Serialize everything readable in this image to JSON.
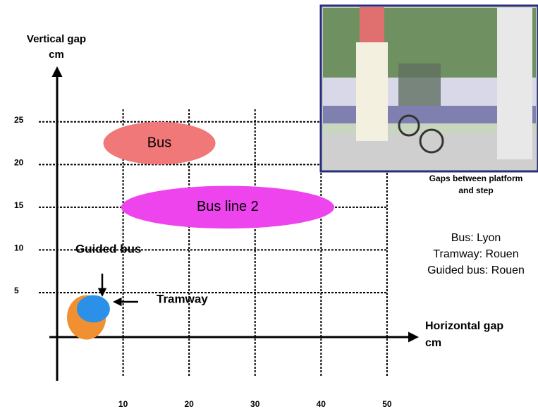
{
  "chart_data": {
    "type": "range",
    "ylabel": [
      "Vertical gap",
      "cm"
    ],
    "xlabel": [
      "Horizontal gap",
      "cm"
    ],
    "xlim": [
      0,
      54.5
    ],
    "ylim": [
      -4.5,
      32
    ],
    "xticks": [
      10,
      20,
      30,
      40,
      50
    ],
    "yticks": [
      5,
      10,
      15,
      20,
      25
    ],
    "grid": true,
    "series": [
      {
        "name": "Bus",
        "color": "#f07878",
        "x": [
          7,
          24
        ],
        "values": [
          20,
          25
        ]
      },
      {
        "name": "Bus line 2",
        "color": "#ee44ee",
        "x": [
          9.7,
          42
        ],
        "values": [
          12.5,
          17.5
        ]
      },
      {
        "name": "Tramway",
        "color": "#f09030",
        "x": [
          1.5,
          7.4
        ],
        "values": [
          -0.5,
          4.7
        ]
      },
      {
        "name": "Guided bus",
        "color": "#2a90e8",
        "x": [
          3,
          8
        ],
        "values": [
          1.5,
          4.7
        ]
      }
    ],
    "annotations": [
      "Guided bus",
      "Tramway"
    ],
    "photo_caption": [
      "Gaps between platform",
      "and step"
    ],
    "notes": [
      "Bus: Lyon",
      "Tramway: Rouen",
      "Guided bus: Rouen"
    ]
  }
}
